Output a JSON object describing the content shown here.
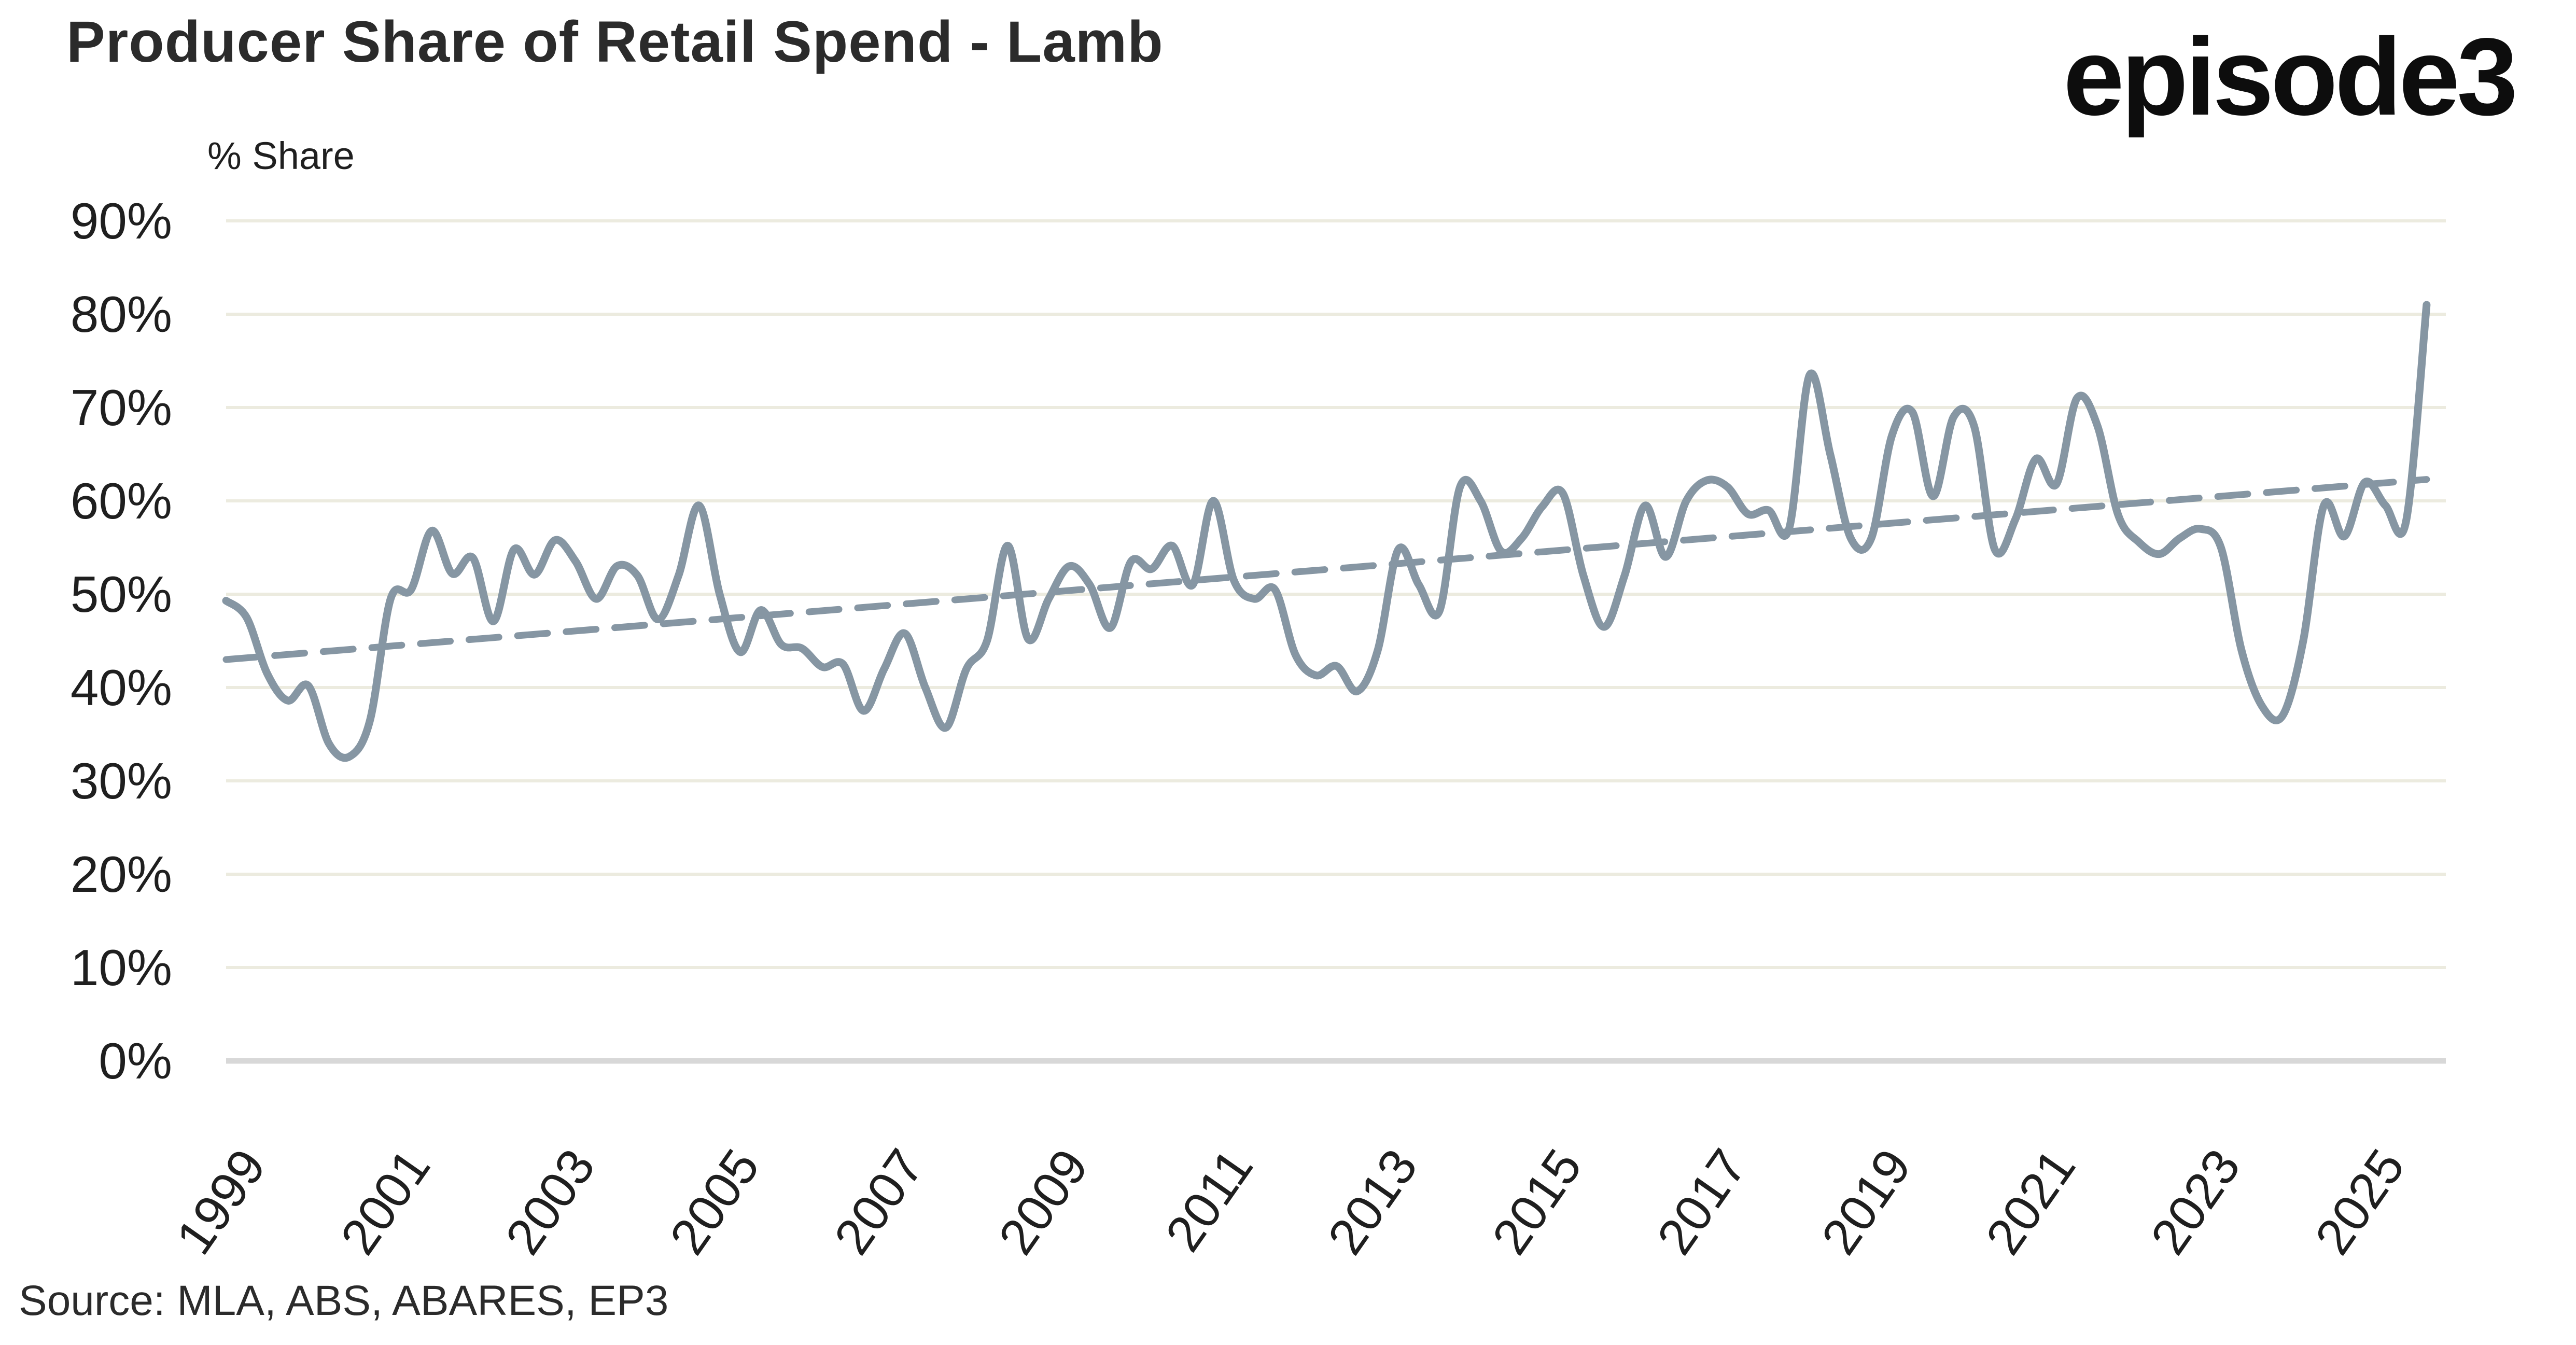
{
  "header": {
    "title": "Producer Share of Retail Spend - Lamb",
    "logo": "episode3"
  },
  "footer": {
    "source": "Source: MLA, ABS, ABARES, EP3"
  },
  "chart_data": {
    "type": "line",
    "title": "Producer Share of Retail Spend - Lamb",
    "xlabel": "",
    "ylabel": "% Share",
    "ylim": [
      0,
      90
    ],
    "y_tick_step": 10,
    "y_tick_labels": [
      "0%",
      "10%",
      "20%",
      "30%",
      "40%",
      "50%",
      "60%",
      "70%",
      "80%",
      "90%"
    ],
    "x_tick_labels": [
      "1999",
      "2001",
      "2003",
      "2005",
      "2007",
      "2009",
      "2011",
      "2013",
      "2015",
      "2017",
      "2019",
      "2021",
      "2023",
      "2025"
    ],
    "xlim": [
      1999,
      2026.1
    ],
    "grid": "horizontal",
    "legend": "none",
    "x_start": 1999.0,
    "x_step": 0.25,
    "x_end": 2025.75,
    "series": [
      {
        "name": "producer-share-of-retail-spend",
        "label": "Producer share of retail spend (%)",
        "style": "solid-smooth",
        "values": [
          49.3,
          47.5,
          41.5,
          38.6,
          40.2,
          34.0,
          32.6,
          36.5,
          49.5,
          50.5,
          56.8,
          52.2,
          53.9,
          47.1,
          54.8,
          52.1,
          55.8,
          53.5,
          49.5,
          53.0,
          52.0,
          47.3,
          52.0,
          59.5,
          50.0,
          43.8,
          48.3,
          44.6,
          44.2,
          42.2,
          42.5,
          37.5,
          42.0,
          45.8,
          40.0,
          35.7,
          42.0,
          45.0,
          55.2,
          45.2,
          49.5,
          53.0,
          51.0,
          46.4,
          53.5,
          52.7,
          55.2,
          51.0,
          60.0,
          51.5,
          49.5,
          50.5,
          43.5,
          41.3,
          42.3,
          39.6,
          44.0,
          54.8,
          51.0,
          48.2,
          61.5,
          60.0,
          54.6,
          56.0,
          59.4,
          60.8,
          52.0,
          46.5,
          52.0,
          59.5,
          54.0,
          60.0,
          62.2,
          61.5,
          58.6,
          59.0,
          57.0,
          73.5,
          65.0,
          56.0,
          56.0,
          67.0,
          69.5,
          60.5,
          69.0,
          68.0,
          54.8,
          58.0,
          64.5,
          61.8,
          71.0,
          68.0,
          58.5,
          55.6,
          54.3,
          56.0,
          57.0,
          55.0,
          44.0,
          38.0,
          37.0,
          45.0,
          59.5,
          56.2,
          62.0,
          59.5,
          57.8,
          81.0
        ]
      }
    ],
    "trend": {
      "name": "linear-trend",
      "label": "Linear trend",
      "style": "dashed",
      "x": [
        1999.0,
        2025.75
      ],
      "values": [
        43.0,
        62.3
      ]
    },
    "colors": {
      "line": "#8696A3",
      "trend": "#8696A3",
      "grid": "#ECEBDF",
      "axis_line": "#D8D8D8",
      "tick_text": "#1F1F1F",
      "title_text": "#2B2B2B",
      "background": "#FFFFFF"
    }
  }
}
